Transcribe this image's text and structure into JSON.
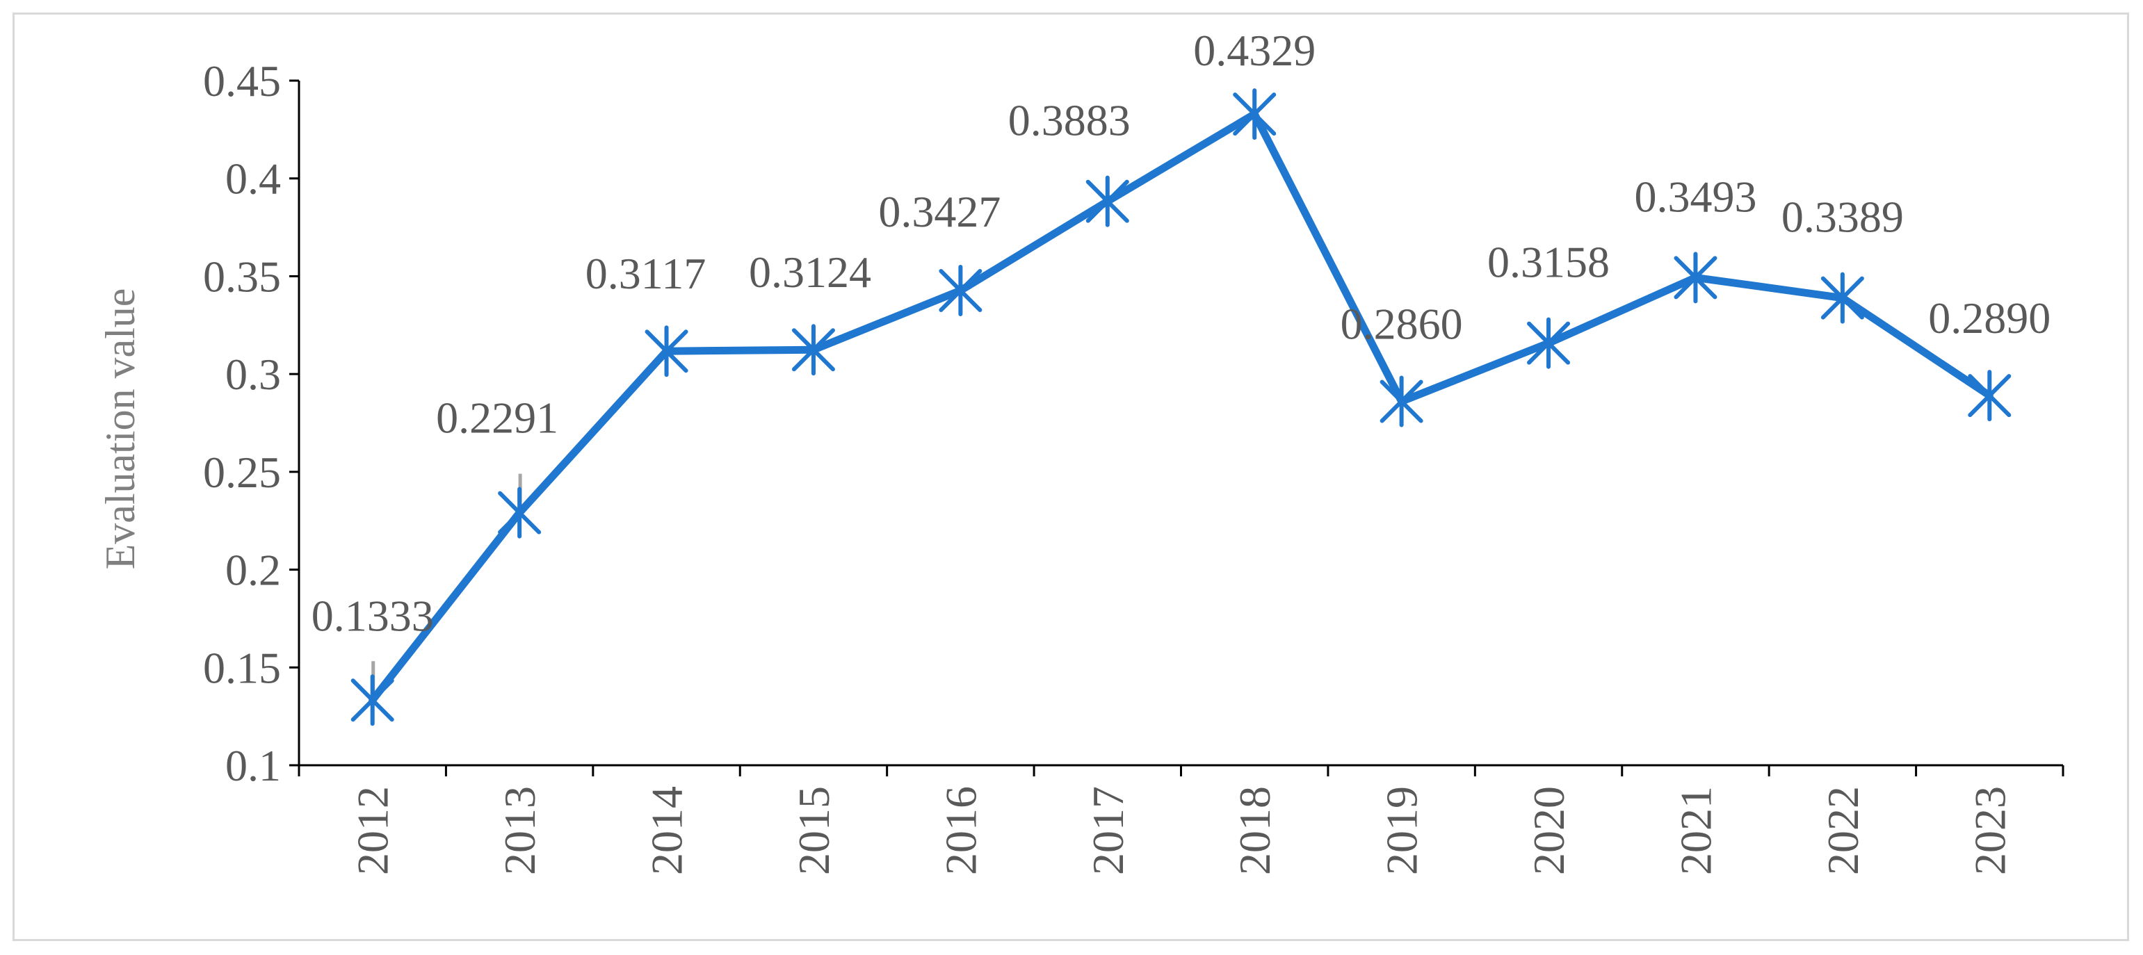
{
  "chart_data": {
    "type": "line",
    "title": "",
    "xlabel": "",
    "ylabel": "Evaluation value",
    "categories": [
      "2012",
      "2013",
      "2014",
      "2015",
      "2016",
      "2017",
      "2018",
      "2019",
      "2020",
      "2021",
      "2022",
      "2023"
    ],
    "series": [
      {
        "values": [
          0.1333,
          0.2291,
          0.3117,
          0.3124,
          0.3427,
          0.3883,
          0.4329,
          0.286,
          0.3158,
          0.3493,
          0.3389,
          0.289
        ],
        "labels": [
          "0.1333",
          "0.2291",
          "0.3117",
          "0.3124",
          "0.3427",
          "0.3883",
          "0.4329",
          "0.2860",
          "0.3158",
          "0.3493",
          "0.3389",
          "0.2890"
        ],
        "color": "#1f77d0",
        "marker": "asterisk"
      }
    ],
    "ylim": [
      0.1,
      0.45
    ],
    "yticks": [
      "0.1",
      "0.15",
      "0.2",
      "0.25",
      "0.3",
      "0.35",
      "0.4",
      "0.45"
    ],
    "ytick_values": [
      0.1,
      0.15,
      0.2,
      0.25,
      0.3,
      0.35,
      0.4,
      0.45
    ],
    "grid": false,
    "legend": "none",
    "xtick_rotation": "vertical"
  },
  "colors": {
    "line": "#1f77d0",
    "axis": "#000000",
    "frame": "#d9d9d9",
    "text": "#595959",
    "whisker": "#a6a6a6"
  }
}
